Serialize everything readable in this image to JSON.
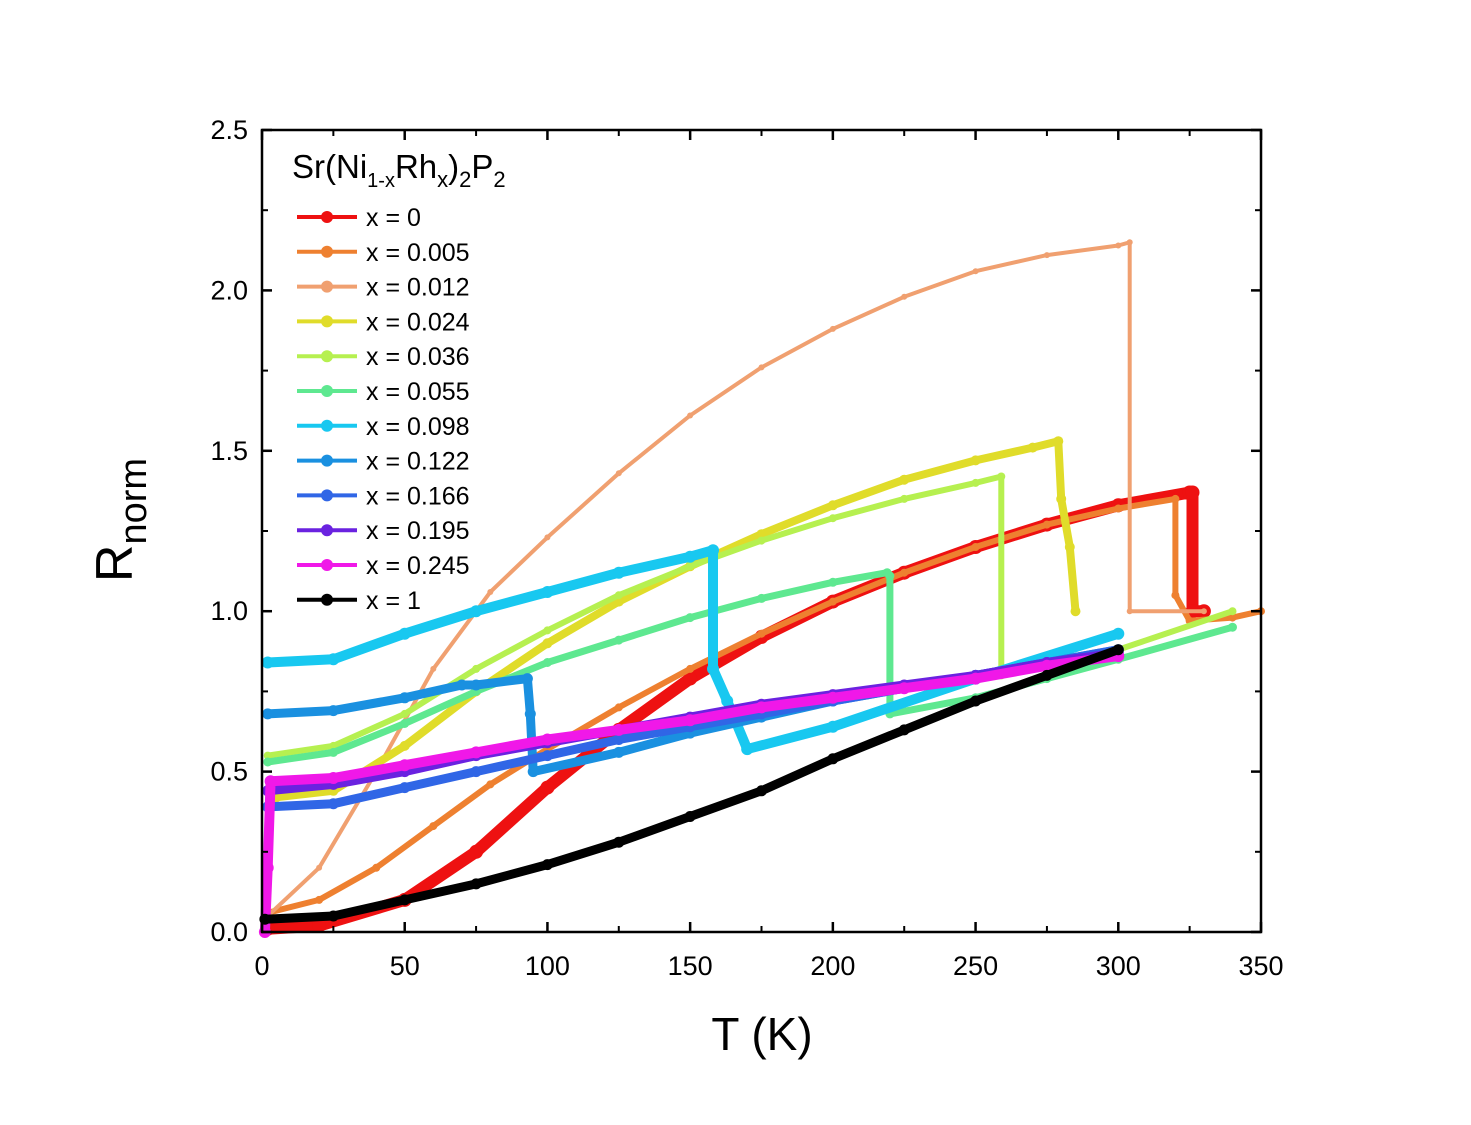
{
  "chart_data": {
    "type": "line",
    "title": "",
    "annotation": {
      "prefix": "Sr(Ni",
      "sub1": "1-x",
      "mid": "Rh",
      "sub2": "x",
      "close": ")",
      "sub3": "2",
      "p": "P",
      "sub4": "2"
    },
    "xlabel": "T (K)",
    "ylabel_main": "R",
    "ylabel_sub": "norm",
    "xlim": [
      0,
      350
    ],
    "ylim": [
      0,
      2.5
    ],
    "xticks": [
      "0",
      "50",
      "100",
      "150",
      "200",
      "250",
      "300",
      "350"
    ],
    "yticks": [
      "0.0",
      "0.5",
      "1.0",
      "1.5",
      "2.0",
      "2.5"
    ],
    "grid": false,
    "legend_position": "top-left",
    "series": [
      {
        "name": "x = 0",
        "color": "#ee1111",
        "width": 12,
        "points": [
          [
            2,
            0.01
          ],
          [
            20,
            0.02
          ],
          [
            50,
            0.1
          ],
          [
            75,
            0.25
          ],
          [
            100,
            0.45
          ],
          [
            125,
            0.63
          ],
          [
            150,
            0.79
          ],
          [
            175,
            0.92
          ],
          [
            200,
            1.03
          ],
          [
            225,
            1.12
          ],
          [
            250,
            1.2
          ],
          [
            275,
            1.27
          ],
          [
            300,
            1.33
          ],
          [
            325,
            1.37
          ],
          [
            326,
            1.37
          ],
          [
            326,
            1.0
          ],
          [
            330,
            1.0
          ]
        ]
      },
      {
        "name": "x = 0.005",
        "color": "#ee8030",
        "width": 6,
        "points": [
          [
            2,
            0.06
          ],
          [
            20,
            0.1
          ],
          [
            40,
            0.2
          ],
          [
            60,
            0.33
          ],
          [
            80,
            0.46
          ],
          [
            100,
            0.57
          ],
          [
            125,
            0.7
          ],
          [
            150,
            0.82
          ],
          [
            175,
            0.93
          ],
          [
            200,
            1.03
          ],
          [
            225,
            1.12
          ],
          [
            250,
            1.2
          ],
          [
            275,
            1.27
          ],
          [
            300,
            1.32
          ],
          [
            320,
            1.35
          ],
          [
            320,
            1.05
          ],
          [
            325,
            0.97
          ],
          [
            340,
            0.98
          ],
          [
            350,
            1.0
          ]
        ]
      },
      {
        "name": "x = 0.012",
        "color": "#f0a070",
        "width": 4,
        "points": [
          [
            2,
            0.05
          ],
          [
            20,
            0.2
          ],
          [
            40,
            0.5
          ],
          [
            60,
            0.82
          ],
          [
            80,
            1.06
          ],
          [
            100,
            1.23
          ],
          [
            125,
            1.43
          ],
          [
            150,
            1.61
          ],
          [
            175,
            1.76
          ],
          [
            200,
            1.88
          ],
          [
            225,
            1.98
          ],
          [
            250,
            2.06
          ],
          [
            275,
            2.11
          ],
          [
            300,
            2.14
          ],
          [
            304,
            2.15
          ],
          [
            304,
            1.0
          ],
          [
            330,
            1.0
          ]
        ]
      },
      {
        "name": "x = 0.024",
        "color": "#e0dc2a",
        "width": 8,
        "points": [
          [
            5,
            0.42
          ],
          [
            25,
            0.44
          ],
          [
            50,
            0.58
          ],
          [
            75,
            0.75
          ],
          [
            100,
            0.9
          ],
          [
            125,
            1.03
          ],
          [
            150,
            1.14
          ],
          [
            175,
            1.24
          ],
          [
            200,
            1.33
          ],
          [
            225,
            1.41
          ],
          [
            250,
            1.47
          ],
          [
            270,
            1.51
          ],
          [
            279,
            1.53
          ],
          [
            280,
            1.35
          ],
          [
            283,
            1.2
          ],
          [
            285,
            1.0
          ]
        ]
      },
      {
        "name": "x = 0.036",
        "color": "#b6f050",
        "width": 6,
        "points": [
          [
            2,
            0.55
          ],
          [
            25,
            0.58
          ],
          [
            50,
            0.68
          ],
          [
            75,
            0.82
          ],
          [
            100,
            0.94
          ],
          [
            125,
            1.05
          ],
          [
            150,
            1.14
          ],
          [
            175,
            1.22
          ],
          [
            200,
            1.29
          ],
          [
            225,
            1.35
          ],
          [
            250,
            1.4
          ],
          [
            259,
            1.42
          ],
          [
            259,
            0.8
          ],
          [
            300,
            0.88
          ],
          [
            340,
            1.0
          ]
        ]
      },
      {
        "name": "x = 0.055",
        "color": "#5ee890",
        "width": 7,
        "points": [
          [
            2,
            0.53
          ],
          [
            25,
            0.56
          ],
          [
            50,
            0.65
          ],
          [
            75,
            0.75
          ],
          [
            100,
            0.84
          ],
          [
            125,
            0.91
          ],
          [
            150,
            0.98
          ],
          [
            175,
            1.04
          ],
          [
            200,
            1.09
          ],
          [
            219,
            1.12
          ],
          [
            220,
            1.11
          ],
          [
            220,
            0.68
          ],
          [
            250,
            0.73
          ],
          [
            275,
            0.79
          ],
          [
            300,
            0.85
          ],
          [
            340,
            0.95
          ]
        ]
      },
      {
        "name": "x = 0.098",
        "color": "#18c8f0",
        "width": 10,
        "points": [
          [
            2,
            0.84
          ],
          [
            25,
            0.85
          ],
          [
            50,
            0.93
          ],
          [
            75,
            1.0
          ],
          [
            100,
            1.06
          ],
          [
            125,
            1.12
          ],
          [
            150,
            1.17
          ],
          [
            158,
            1.19
          ],
          [
            158,
            0.82
          ],
          [
            163,
            0.72
          ],
          [
            170,
            0.57
          ],
          [
            200,
            0.64
          ],
          [
            250,
            0.79
          ],
          [
            300,
            0.93
          ]
        ]
      },
      {
        "name": "x = 0.122",
        "color": "#1a90e0",
        "width": 9,
        "points": [
          [
            2,
            0.68
          ],
          [
            25,
            0.69
          ],
          [
            50,
            0.73
          ],
          [
            70,
            0.77
          ],
          [
            75,
            0.77
          ],
          [
            93,
            0.79
          ],
          [
            94,
            0.68
          ],
          [
            95,
            0.5
          ],
          [
            125,
            0.56
          ],
          [
            150,
            0.62
          ],
          [
            175,
            0.67
          ],
          [
            200,
            0.72
          ],
          [
            225,
            0.76
          ],
          [
            250,
            0.8
          ],
          [
            275,
            0.84
          ],
          [
            300,
            0.88
          ]
        ]
      },
      {
        "name": "x = 0.166",
        "color": "#3066e6",
        "width": 9,
        "points": [
          [
            2,
            0.39
          ],
          [
            25,
            0.4
          ],
          [
            50,
            0.45
          ],
          [
            75,
            0.5
          ],
          [
            100,
            0.55
          ],
          [
            125,
            0.6
          ],
          [
            150,
            0.64
          ],
          [
            175,
            0.68
          ],
          [
            200,
            0.72
          ],
          [
            225,
            0.76
          ],
          [
            250,
            0.8
          ],
          [
            275,
            0.84
          ],
          [
            300,
            0.88
          ]
        ]
      },
      {
        "name": "x = 0.195",
        "color": "#6a22e0",
        "width": 9,
        "points": [
          [
            2,
            0.44
          ],
          [
            25,
            0.46
          ],
          [
            50,
            0.5
          ],
          [
            75,
            0.55
          ],
          [
            100,
            0.59
          ],
          [
            125,
            0.63
          ],
          [
            150,
            0.67
          ],
          [
            175,
            0.71
          ],
          [
            200,
            0.74
          ],
          [
            225,
            0.77
          ],
          [
            250,
            0.8
          ],
          [
            275,
            0.84
          ],
          [
            300,
            0.87
          ]
        ]
      },
      {
        "name": "x = 0.245",
        "color": "#f018e8",
        "width": 10,
        "points": [
          [
            1,
            0.0
          ],
          [
            2,
            0.2
          ],
          [
            3,
            0.47
          ],
          [
            25,
            0.48
          ],
          [
            50,
            0.52
          ],
          [
            75,
            0.56
          ],
          [
            100,
            0.6
          ],
          [
            125,
            0.63
          ],
          [
            150,
            0.66
          ],
          [
            175,
            0.7
          ],
          [
            200,
            0.73
          ],
          [
            225,
            0.76
          ],
          [
            250,
            0.79
          ],
          [
            275,
            0.83
          ],
          [
            300,
            0.86
          ]
        ]
      },
      {
        "name": "x = 1",
        "color": "#000000",
        "width": 9,
        "points": [
          [
            1,
            0.04
          ],
          [
            25,
            0.05
          ],
          [
            50,
            0.1
          ],
          [
            75,
            0.15
          ],
          [
            100,
            0.21
          ],
          [
            125,
            0.28
          ],
          [
            150,
            0.36
          ],
          [
            175,
            0.44
          ],
          [
            200,
            0.54
          ],
          [
            225,
            0.63
          ],
          [
            250,
            0.72
          ],
          [
            275,
            0.8
          ],
          [
            300,
            0.88
          ]
        ]
      }
    ]
  }
}
